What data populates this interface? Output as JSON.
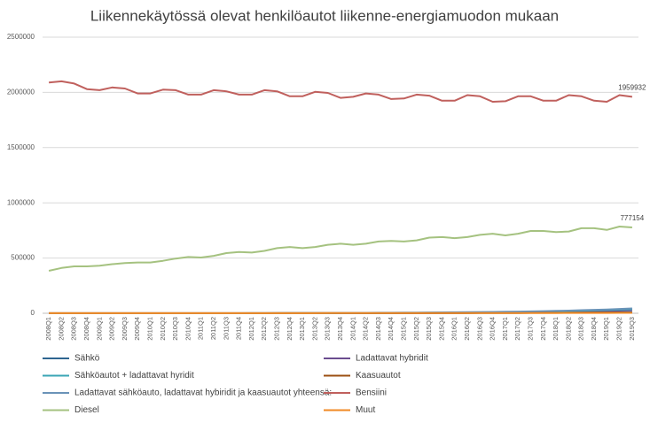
{
  "chart_data": {
    "type": "line",
    "title": "Liikennekäytössä olevat henkilöautot liikenne-energiamuodon  mukaan",
    "categories": [
      "2008Q1",
      "2008Q2",
      "2008Q3",
      "2008Q4",
      "2009Q1",
      "2009Q2",
      "2009Q3",
      "2009Q4",
      "2010Q1",
      "2010Q2",
      "2010Q3",
      "2010Q4",
      "2011Q1",
      "2011Q2",
      "2011Q3",
      "2011Q4",
      "2012Q1",
      "2012Q2",
      "2012Q3",
      "2012Q4",
      "2013Q1",
      "2013Q2",
      "2013Q3",
      "2013Q4",
      "2014Q1",
      "2014Q2",
      "2014Q3",
      "2014Q4",
      "2015Q1",
      "2015Q2",
      "2015Q3",
      "2015Q4",
      "2016Q1",
      "2016Q2",
      "2016Q3",
      "2016Q4",
      "2017Q1",
      "2017Q2",
      "2017Q3",
      "2017Q4",
      "2018Q1",
      "2018Q2",
      "2018Q3",
      "2018Q4",
      "2019Q1",
      "2019Q2",
      "2019Q3"
    ],
    "series": [
      {
        "name": "Sähkö",
        "color": "#2f6590",
        "values": [
          40,
          40,
          40,
          50,
          50,
          50,
          50,
          60,
          60,
          60,
          70,
          80,
          90,
          100,
          150,
          200,
          250,
          300,
          400,
          500,
          600,
          700,
          800,
          900,
          1000,
          1200,
          1400,
          1600,
          1800,
          2000,
          2200,
          2400,
          2500,
          2700,
          2900,
          3000,
          3200,
          3500,
          3800,
          4100,
          4500,
          5200,
          6000,
          6700,
          7500,
          8800,
          10000
        ]
      },
      {
        "name": "Ladattavat hybridit",
        "color": "#6b4c8f",
        "values": [
          0,
          0,
          0,
          0,
          0,
          0,
          0,
          0,
          0,
          0,
          0,
          0,
          0,
          0,
          0,
          0,
          10,
          20,
          40,
          60,
          100,
          200,
          300,
          400,
          600,
          800,
          1000,
          1300,
          1600,
          2000,
          2500,
          3000,
          3500,
          4200,
          5000,
          5800,
          6800,
          8000,
          9500,
          11000,
          12500,
          14500,
          17000,
          19000,
          21000,
          24000,
          27000
        ]
      },
      {
        "name": "Sähköautot + ladattavat hyridit",
        "color": "#3aa5b5",
        "values": [
          40,
          40,
          40,
          50,
          50,
          50,
          50,
          60,
          60,
          60,
          70,
          80,
          90,
          100,
          150,
          200,
          260,
          320,
          440,
          560,
          700,
          900,
          1100,
          1300,
          1600,
          2000,
          2400,
          2900,
          3400,
          4000,
          4700,
          5400,
          6000,
          6900,
          7900,
          8800,
          10000,
          11500,
          13300,
          15100,
          17000,
          19700,
          23000,
          25700,
          28500,
          32800,
          37000
        ]
      },
      {
        "name": "Kaasuautot",
        "color": "#9b4f12",
        "values": [
          500,
          500,
          550,
          550,
          600,
          600,
          650,
          650,
          700,
          700,
          750,
          800,
          850,
          900,
          950,
          1000,
          1100,
          1200,
          1300,
          1400,
          1500,
          1600,
          1700,
          1800,
          1900,
          2000,
          2100,
          2200,
          2300,
          2400,
          2500,
          2600,
          2700,
          2800,
          3000,
          3200,
          3400,
          3600,
          3800,
          4000,
          4300,
          4600,
          5000,
          5400,
          5800,
          6300,
          6800
        ]
      },
      {
        "name": "Ladattavat sähköauto, ladattavat hybiridit ja kaasuautot yhteensä:",
        "color": "#6a93b8",
        "values": [
          540,
          540,
          590,
          600,
          650,
          650,
          700,
          710,
          760,
          760,
          820,
          880,
          940,
          1000,
          1100,
          1200,
          1360,
          1520,
          1740,
          1960,
          2200,
          2500,
          2800,
          3100,
          3500,
          4000,
          4500,
          5100,
          5700,
          6400,
          7200,
          8000,
          8700,
          9700,
          10900,
          12000,
          13400,
          15100,
          17100,
          19100,
          21300,
          24300,
          28000,
          31100,
          34300,
          39100,
          43800
        ]
      },
      {
        "name": "Bensiini",
        "color": "#c0605d",
        "values": [
          2090000,
          2100000,
          2080000,
          2030000,
          2020000,
          2045000,
          2035000,
          1990000,
          1990000,
          2025000,
          2020000,
          1980000,
          1980000,
          2020000,
          2010000,
          1980000,
          1980000,
          2020000,
          2010000,
          1965000,
          1965000,
          2005000,
          1995000,
          1950000,
          1960000,
          1990000,
          1980000,
          1940000,
          1945000,
          1980000,
          1970000,
          1925000,
          1925000,
          1975000,
          1965000,
          1915000,
          1920000,
          1965000,
          1965000,
          1925000,
          1925000,
          1975000,
          1965000,
          1925000,
          1915000,
          1975000,
          1959932
        ]
      },
      {
        "name": "Diesel",
        "color": "#a5c280",
        "values": [
          385000,
          410000,
          425000,
          425000,
          430000,
          445000,
          455000,
          460000,
          460000,
          475000,
          495000,
          510000,
          505000,
          520000,
          545000,
          555000,
          550000,
          565000,
          590000,
          600000,
          590000,
          600000,
          620000,
          630000,
          620000,
          630000,
          650000,
          655000,
          650000,
          660000,
          685000,
          690000,
          680000,
          690000,
          710000,
          720000,
          705000,
          720000,
          745000,
          745000,
          735000,
          740000,
          770000,
          770000,
          755000,
          785000,
          777154
        ]
      },
      {
        "name": "Muut",
        "color": "#f08a24",
        "values": [
          1000,
          1000,
          1000,
          1000,
          1000,
          1000,
          1000,
          1000,
          1000,
          1000,
          1000,
          1000,
          1000,
          1000,
          1000,
          1000,
          1050,
          1100,
          1100,
          1150,
          1200,
          1200,
          1250,
          1300,
          1350,
          1400,
          1450,
          1500,
          1550,
          1600,
          1700,
          1800,
          1900,
          2000,
          2100,
          2200,
          2300,
          2400,
          2500,
          2600,
          2700,
          2900,
          3100,
          3300,
          3500,
          3700,
          3900
        ]
      }
    ],
    "ylim": [
      0,
      2500000
    ],
    "yticks": [
      0,
      500000,
      1000000,
      1500000,
      2000000,
      2500000
    ],
    "grid": true
  }
}
